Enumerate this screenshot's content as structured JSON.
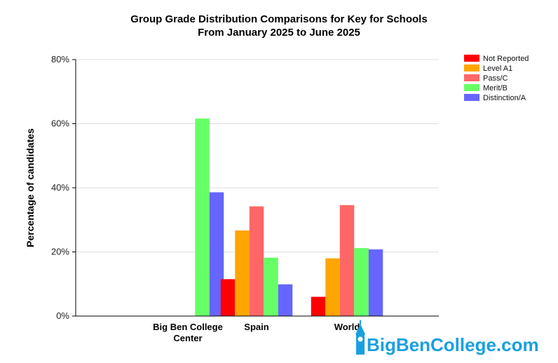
{
  "chart_data": {
    "type": "bar",
    "title": [
      "Group Grade Distribution Comparisons for Key for Schools",
      "From January 2025 to June 2025"
    ],
    "ylabel": "Percentage of candidates",
    "xlabel": "",
    "ylim": [
      0,
      80
    ],
    "yticks": [
      0,
      20,
      40,
      60,
      80
    ],
    "ytick_labels": [
      "0%",
      "20%",
      "40%",
      "60%",
      "80%"
    ],
    "grid": true,
    "legend_position": "top-right",
    "categories": [
      [
        "Big Ben College",
        "Center"
      ],
      [
        "Spain"
      ],
      [
        "World"
      ]
    ],
    "series": [
      {
        "name": "Not Reported",
        "color": "#ff0000",
        "values": [
          0,
          11.5,
          6
        ]
      },
      {
        "name": "Level A1",
        "color": "#ffa500",
        "values": [
          0,
          26.7,
          18
        ]
      },
      {
        "name": "Pass/C",
        "color": "#ff6666",
        "values": [
          0,
          34.2,
          34.6
        ]
      },
      {
        "name": "Merit/B",
        "color": "#66ff66",
        "values": [
          61.6,
          18.2,
          21.2
        ]
      },
      {
        "name": "Distinction/A",
        "color": "#6666ff",
        "values": [
          38.6,
          9.9,
          20.8
        ]
      }
    ]
  },
  "watermark": {
    "text": "BigBenCollege.com",
    "color": "#1aa0e0"
  }
}
